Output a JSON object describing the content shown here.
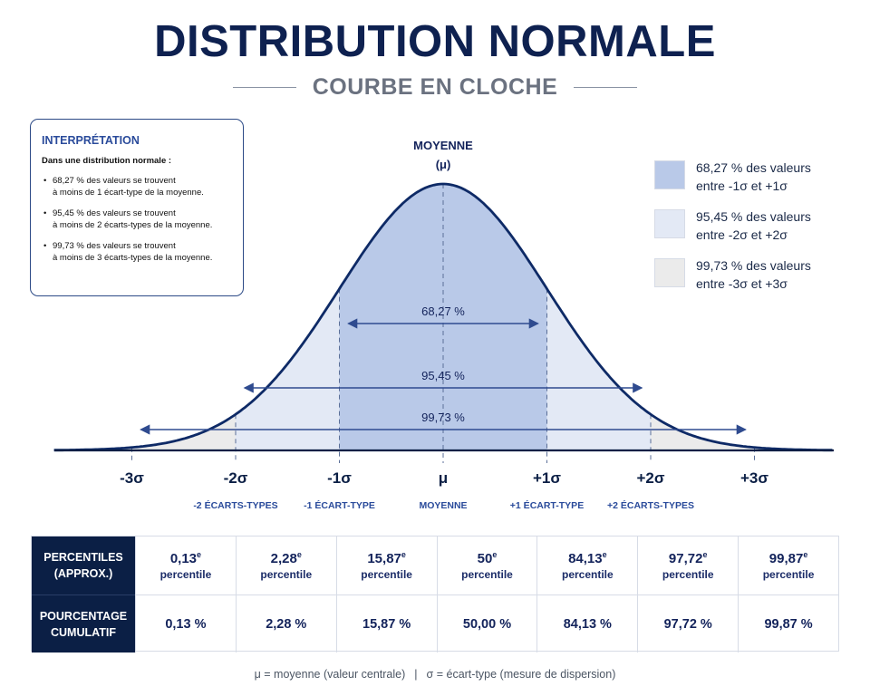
{
  "title": "DISTRIBUTION NORMALE",
  "subtitle": "COURBE EN CLOCHE",
  "interpretation": {
    "heading": "INTERPRÉTATION",
    "intro": "Dans une distribution normale :",
    "bullets": [
      {
        "line1": "68,27 % des valeurs se trouvent",
        "line2": "à moins de 1 écart-type de la moyenne."
      },
      {
        "line1": "95,45 % des valeurs se trouvent",
        "line2": "à moins de 2 écarts-types de la moyenne."
      },
      {
        "line1": "99,73 % des valeurs se trouvent",
        "line2": "à moins de 3 écarts-types de la moyenne."
      }
    ]
  },
  "legend": [
    {
      "line1": "68,27 % des valeurs",
      "line2": "entre -1σ et +1σ",
      "color": "#b9c9e8"
    },
    {
      "line1": "95,45 % des valeurs",
      "line2": "entre -2σ et +2σ",
      "color": "#e3e9f5"
    },
    {
      "line1": "99,73 % des valeurs",
      "line2": "entre -3σ et +3σ",
      "color": "#ebebeb"
    }
  ],
  "chart_data": {
    "type": "area",
    "curve": "normal density",
    "mean_label": "MOYENNE",
    "mean_symbol": "(μ)",
    "x_ticks": [
      "-3σ",
      "-2σ",
      "-1σ",
      "μ",
      "+1σ",
      "+2σ",
      "+3σ"
    ],
    "x_values": [
      -3,
      -2,
      -1,
      0,
      1,
      2,
      3
    ],
    "sub_labels": [
      {
        "x": -2,
        "text": "-2 ÉCARTS-TYPES"
      },
      {
        "x": -1,
        "text": "-1 ÉCART-TYPE"
      },
      {
        "x": 0,
        "text": "MOYENNE"
      },
      {
        "x": 1,
        "text": "+1 ÉCART-TYPE"
      },
      {
        "x": 2,
        "text": "+2 ÉCARTS-TYPES"
      }
    ],
    "intervals": [
      {
        "from": -1,
        "to": 1,
        "label": "68,27 %"
      },
      {
        "from": -2,
        "to": 2,
        "label": "95,45 %"
      },
      {
        "from": -3,
        "to": 3,
        "label": "99,73 %"
      }
    ],
    "colors": {
      "curve": "#0e2a66",
      "band1": "#b9c9e8",
      "band2": "#e3e9f5",
      "band3": "#ebebeb",
      "arrow": "#2f4b8f"
    }
  },
  "table": {
    "row_headers": [
      {
        "line1": "PERCENTILES",
        "line2": "(APPROX.)"
      },
      {
        "line1": "POURCENTAGE",
        "line2": "CUMULATIF"
      }
    ],
    "percentiles": [
      {
        "value": "0,13",
        "sup": "e",
        "word": "percentile"
      },
      {
        "value": "2,28",
        "sup": "e",
        "word": "percentile"
      },
      {
        "value": "15,87",
        "sup": "e",
        "word": "percentile"
      },
      {
        "value": "50",
        "sup": "e",
        "word": "percentile"
      },
      {
        "value": "84,13",
        "sup": "e",
        "word": "percentile"
      },
      {
        "value": "97,72",
        "sup": "e",
        "word": "percentile"
      },
      {
        "value": "99,87",
        "sup": "e",
        "word": "percentile"
      }
    ],
    "cumulative": [
      "0,13 %",
      "2,28 %",
      "15,87 %",
      "50,00 %",
      "84,13 %",
      "97,72 %",
      "99,87 %"
    ]
  },
  "footnote": {
    "mu": "μ = moyenne (valeur centrale)",
    "separator": "|",
    "sigma": "σ = écart-type (mesure de dispersion)"
  }
}
